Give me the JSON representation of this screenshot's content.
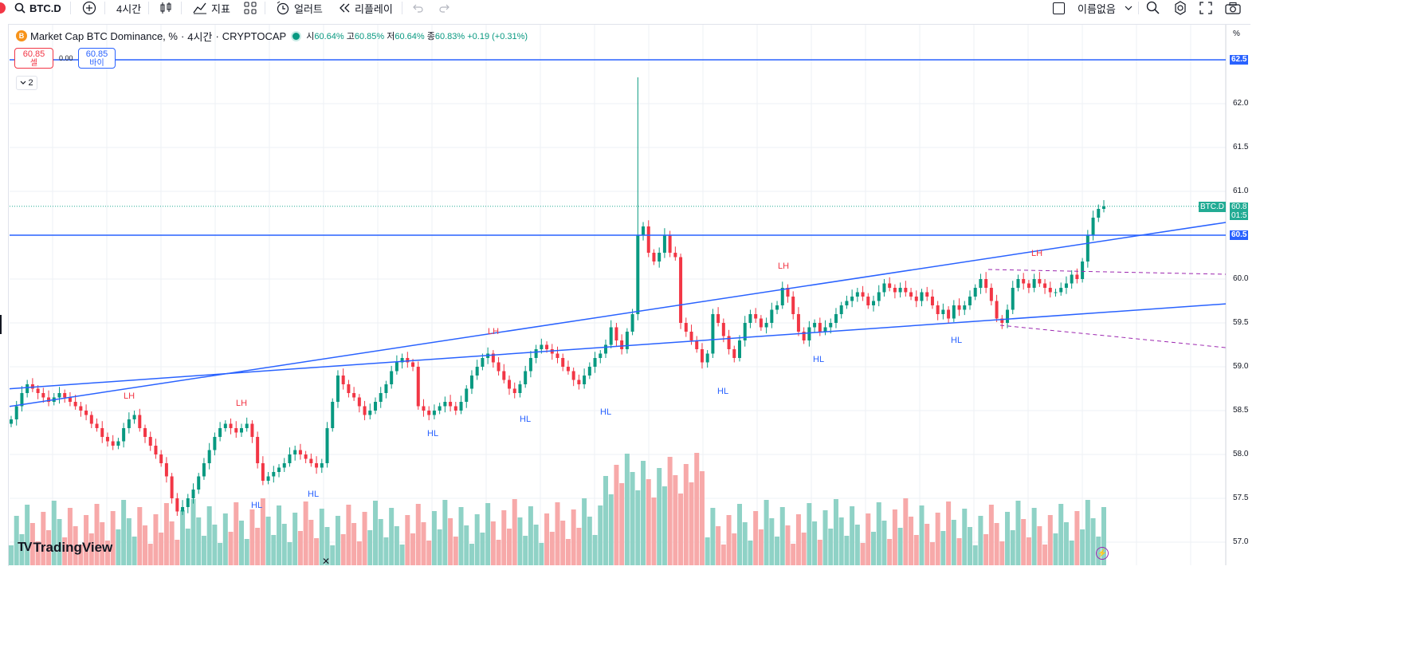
{
  "toolbar": {
    "symbol": "BTC.D",
    "interval": "4시간",
    "indicators_label": "지표",
    "alerts_label": "얼러트",
    "replay_label": "리플레이",
    "layout_name": "이름없음"
  },
  "legend": {
    "title": "Market Cap BTC Dominance, %",
    "interval": "4시간",
    "exchange": "CRYPTOCAP",
    "open_label": "시",
    "open": "60.64%",
    "high_label": "고",
    "high": "60.85%",
    "low_label": "저",
    "low": "60.64%",
    "close_label": "종",
    "close": "60.83%",
    "change": "+0.19 (+0.31%)"
  },
  "trade": {
    "sell_price": "60.85",
    "sell_label": "셀",
    "spread": "0.00",
    "buy_price": "60.85",
    "buy_label": "바이"
  },
  "collapse_count": "2",
  "price_axis": {
    "unit": "%",
    "ticks": [
      "62.0",
      "61.5",
      "61.0",
      "60.0",
      "59.5",
      "59.0",
      "58.5",
      "58.0",
      "57.5",
      "57.0"
    ],
    "line_tag_top": "62.5",
    "line_tag_mid": "60.5",
    "symbol_tag": "BTC.D",
    "last_price": "60.8",
    "countdown": "01:5"
  },
  "annotations": {
    "lh": "LH",
    "hl": "HL"
  },
  "watermark": "TradingView",
  "colors": {
    "up": "#089981",
    "down": "#f23645",
    "line": "#2962ff",
    "dashed": "#9c27b0",
    "vol_up": "#8fd2c6",
    "vol_down": "#f7a9a9"
  },
  "chart_data": {
    "type": "candlestick",
    "symbol": "BTC.D",
    "ylim": [
      56.9,
      62.6
    ],
    "horizontal_levels": [
      62.5,
      60.5
    ],
    "closes": [
      58.4,
      58.55,
      58.7,
      58.8,
      58.75,
      58.7,
      58.65,
      58.6,
      58.65,
      58.7,
      58.65,
      58.6,
      58.55,
      58.5,
      58.45,
      58.35,
      58.3,
      58.2,
      58.15,
      58.1,
      58.15,
      58.3,
      58.4,
      58.45,
      58.3,
      58.2,
      58.1,
      58.0,
      57.9,
      57.75,
      57.5,
      57.35,
      57.4,
      57.5,
      57.6,
      57.75,
      57.9,
      58.05,
      58.2,
      58.3,
      58.35,
      58.3,
      58.25,
      58.3,
      58.35,
      58.2,
      57.9,
      57.7,
      57.75,
      57.8,
      57.85,
      57.9,
      58.0,
      58.05,
      58.0,
      57.95,
      57.9,
      57.85,
      57.9,
      58.3,
      58.6,
      58.9,
      58.8,
      58.7,
      58.65,
      58.55,
      58.45,
      58.5,
      58.6,
      58.7,
      58.8,
      58.95,
      59.05,
      59.1,
      59.05,
      59.0,
      58.55,
      58.5,
      58.45,
      58.5,
      58.55,
      58.6,
      58.55,
      58.5,
      58.6,
      58.75,
      58.9,
      59.0,
      59.1,
      59.15,
      59.05,
      58.95,
      58.85,
      58.75,
      58.7,
      58.8,
      58.95,
      59.1,
      59.2,
      59.25,
      59.2,
      59.15,
      59.1,
      59.0,
      58.95,
      58.85,
      58.8,
      58.9,
      59.0,
      59.1,
      59.15,
      59.25,
      59.45,
      59.3,
      59.2,
      59.4,
      59.6,
      60.5,
      60.6,
      60.3,
      60.2,
      60.3,
      60.5,
      60.3,
      60.25,
      59.5,
      59.4,
      59.3,
      59.2,
      59.05,
      59.15,
      59.6,
      59.5,
      59.35,
      59.2,
      59.1,
      59.3,
      59.5,
      59.6,
      59.55,
      59.45,
      59.5,
      59.65,
      59.7,
      59.9,
      59.8,
      59.6,
      59.4,
      59.3,
      59.45,
      59.5,
      59.4,
      59.45,
      59.5,
      59.6,
      59.7,
      59.75,
      59.8,
      59.85,
      59.8,
      59.7,
      59.75,
      59.85,
      59.95,
      59.9,
      59.85,
      59.9,
      59.85,
      59.8,
      59.75,
      59.85,
      59.8,
      59.7,
      59.6,
      59.65,
      59.55,
      59.7,
      59.65,
      59.7,
      59.8,
      59.9,
      60.0,
      59.9,
      59.75,
      59.55,
      59.5,
      59.65,
      59.9,
      60.0,
      59.95,
      59.9,
      60.0,
      59.95,
      59.9,
      59.85,
      59.85,
      59.9,
      59.95,
      60.05,
      60.0,
      60.2,
      60.5,
      60.7,
      60.8,
      60.83
    ],
    "series": [
      {
        "name": "LH",
        "values": []
      }
    ],
    "trendlines": [
      {
        "from": [
          0,
          58.55
        ],
        "to": [
          211,
          60.5
        ]
      },
      {
        "from": [
          0,
          58.75
        ],
        "to": [
          211,
          59.65
        ]
      }
    ]
  }
}
